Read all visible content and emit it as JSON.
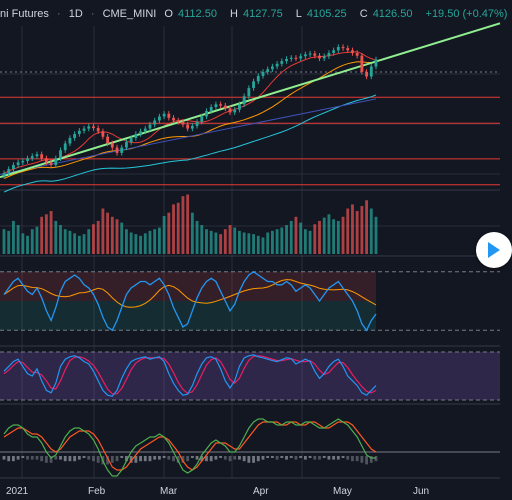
{
  "header": {
    "symbol": "ni Futures",
    "separator": "·",
    "interval": "1D",
    "exchange": "CME_MINI",
    "open_label": "O",
    "open": "4112.50",
    "high_label": "H",
    "high": "4127.75",
    "low_label": "L",
    "low": "4105.25",
    "close_label": "C",
    "close": "4126.50",
    "change": "+19.50 (+0.47%)"
  },
  "colors": {
    "background": "#131722",
    "up": "#26a69a",
    "down": "#ef5350",
    "grid": "#2a2e39",
    "horizontal_level": "#e53935",
    "trendline": "#90ee90",
    "ma_fast": "#e53935",
    "ma_mid": "#ff9800",
    "ma_slow": "#26c6da",
    "ma_long": "#3f51b5",
    "stoch_k": "#2196f3",
    "stoch_d": "#e91e63",
    "macd": "#4caf50",
    "signal": "#ff5722"
  },
  "chart_data": {
    "type": "line",
    "panes": [
      "price",
      "volume",
      "oscillator",
      "stochastic",
      "macd"
    ],
    "time_axis": [
      "2021",
      "Feb",
      "Mar",
      "Apr",
      "May",
      "Jun"
    ],
    "last_bar": {
      "open": 4112.5,
      "high": 4127.75,
      "low": 4105.25,
      "close": 4126.5,
      "change": 19.5,
      "change_pct": 0.47
    },
    "price_series": [
      {
        "name": "",
        "values": [
          3705,
          3720,
          3735,
          3745,
          3750,
          3760,
          3768,
          3775,
          3760,
          3745,
          3735,
          3760,
          3790,
          3815,
          3835,
          3850,
          3862,
          3870,
          3878,
          3872,
          3860,
          3840,
          3815,
          3800,
          3780,
          3800,
          3820,
          3835,
          3850,
          3860,
          3870,
          3885,
          3900,
          3915,
          3925,
          3910,
          3900,
          3895,
          3885,
          3870,
          3880,
          3895,
          3915,
          3935,
          3950,
          3960,
          3955,
          3945,
          3930,
          3940,
          3960,
          3990,
          4020,
          4045,
          4065,
          4080,
          4090,
          4100,
          4110,
          4120,
          4128,
          4132,
          4130,
          4138,
          4145,
          4148,
          4140,
          4130,
          4138,
          4150,
          4160,
          4172,
          4168,
          4160,
          4150,
          4140,
          4080,
          4063,
          4100,
          4126
        ]
      }
    ],
    "volume": [
      30,
      28,
      40,
      35,
      25,
      22,
      30,
      33,
      45,
      48,
      52,
      40,
      35,
      30,
      28,
      25,
      22,
      24,
      30,
      36,
      40,
      55,
      50,
      45,
      42,
      38,
      30,
      26,
      24,
      22,
      25,
      28,
      30,
      32,
      46,
      50,
      60,
      62,
      70,
      72,
      50,
      40,
      35,
      30,
      28,
      26,
      24,
      30,
      35,
      32,
      28,
      26,
      25,
      24,
      22,
      20,
      26,
      28,
      30,
      32,
      35,
      40,
      45,
      38,
      30,
      28,
      36,
      40,
      44,
      48,
      42,
      40,
      45,
      55,
      60,
      52,
      58,
      65,
      55,
      45
    ],
    "oscillator": [
      0.2,
      0.4,
      0.6,
      0.7,
      0.5,
      0.3,
      0.2,
      0.4,
      0.1,
      -0.3,
      -0.6,
      -0.2,
      0.3,
      0.6,
      0.7,
      0.8,
      0.7,
      0.5,
      0.4,
      0.2,
      -0.1,
      -0.5,
      -0.8,
      -0.9,
      -0.6,
      -0.2,
      0.2,
      0.4,
      0.5,
      0.6,
      0.6,
      0.5,
      0.6,
      0.7,
      0.5,
      0.2,
      -0.2,
      -0.5,
      -0.8,
      -0.7,
      -0.3,
      0.1,
      0.4,
      0.6,
      0.7,
      0.6,
      0.3,
      0.0,
      -0.3,
      -0.1,
      0.3,
      0.6,
      0.8,
      0.9,
      0.8,
      0.7,
      0.6,
      0.6,
      0.5,
      0.5,
      0.6,
      0.5,
      0.3,
      0.4,
      0.5,
      0.4,
      0.2,
      0.0,
      0.2,
      0.4,
      0.5,
      0.6,
      0.4,
      0.2,
      0.0,
      -0.3,
      -0.7,
      -0.9,
      -0.6,
      -0.4
    ],
    "stochastic": {
      "k": [
        60,
        70,
        80,
        85,
        70,
        55,
        50,
        65,
        40,
        20,
        15,
        35,
        70,
        85,
        90,
        92,
        88,
        80,
        75,
        60,
        40,
        20,
        10,
        8,
        20,
        45,
        65,
        80,
        85,
        88,
        90,
        85,
        88,
        90,
        80,
        55,
        35,
        20,
        10,
        12,
        30,
        55,
        75,
        88,
        90,
        85,
        65,
        40,
        25,
        40,
        70,
        88,
        92,
        94,
        90,
        88,
        85,
        82,
        80,
        84,
        88,
        86,
        75,
        80,
        85,
        80,
        60,
        45,
        55,
        70,
        80,
        85,
        70,
        50,
        40,
        30,
        15,
        10,
        20,
        30
      ],
      "d": [
        55,
        62,
        72,
        80,
        78,
        68,
        58,
        57,
        52,
        40,
        25,
        23,
        40,
        63,
        82,
        89,
        90,
        87,
        81,
        72,
        58,
        40,
        23,
        13,
        13,
        24,
        43,
        63,
        77,
        84,
        88,
        88,
        88,
        88,
        86,
        75,
        57,
        37,
        22,
        14,
        17,
        32,
        53,
        73,
        84,
        88,
        80,
        63,
        43,
        35,
        45,
        66,
        83,
        91,
        92,
        91,
        88,
        85,
        82,
        82,
        84,
        86,
        83,
        80,
        80,
        82,
        75,
        62,
        53,
        57,
        68,
        78,
        78,
        68,
        53,
        40,
        28,
        18,
        15,
        20
      ]
    },
    "macd": {
      "macd": [
        0.6,
        0.8,
        0.9,
        0.9,
        0.8,
        0.6,
        0.5,
        0.5,
        0.3,
        0.0,
        -0.2,
        -0.1,
        0.2,
        0.5,
        0.7,
        0.8,
        0.8,
        0.7,
        0.6,
        0.4,
        0.1,
        -0.3,
        -0.6,
        -0.8,
        -0.8,
        -0.6,
        -0.3,
        0.0,
        0.2,
        0.3,
        0.4,
        0.5,
        0.5,
        0.6,
        0.5,
        0.3,
        0.0,
        -0.3,
        -0.6,
        -0.7,
        -0.6,
        -0.4,
        -0.1,
        0.1,
        0.3,
        0.4,
        0.3,
        0.2,
        0.0,
        0.0,
        0.2,
        0.5,
        0.8,
        1.0,
        1.1,
        1.1,
        1.0,
        1.0,
        0.9,
        0.9,
        1.0,
        1.0,
        0.9,
        0.9,
        1.0,
        1.0,
        0.9,
        0.8,
        0.8,
        0.9,
        1.0,
        1.1,
        1.0,
        0.9,
        0.7,
        0.5,
        0.2,
        -0.1,
        -0.2,
        -0.2
      ],
      "signal": [
        0.5,
        0.6,
        0.7,
        0.8,
        0.8,
        0.7,
        0.6,
        0.6,
        0.5,
        0.3,
        0.1,
        0.0,
        0.1,
        0.3,
        0.5,
        0.6,
        0.7,
        0.7,
        0.7,
        0.6,
        0.4,
        0.1,
        -0.2,
        -0.5,
        -0.6,
        -0.6,
        -0.5,
        -0.3,
        -0.1,
        0.1,
        0.2,
        0.3,
        0.4,
        0.5,
        0.5,
        0.4,
        0.2,
        0.0,
        -0.3,
        -0.5,
        -0.6,
        -0.5,
        -0.3,
        -0.1,
        0.1,
        0.3,
        0.3,
        0.3,
        0.2,
        0.1,
        0.1,
        0.3,
        0.5,
        0.7,
        0.9,
        1.0,
        1.0,
        1.0,
        1.0,
        0.9,
        0.9,
        1.0,
        1.0,
        0.9,
        0.9,
        1.0,
        1.0,
        0.9,
        0.8,
        0.8,
        0.9,
        1.0,
        1.0,
        1.0,
        0.9,
        0.7,
        0.5,
        0.3,
        0.1,
        0.0
      ]
    }
  }
}
